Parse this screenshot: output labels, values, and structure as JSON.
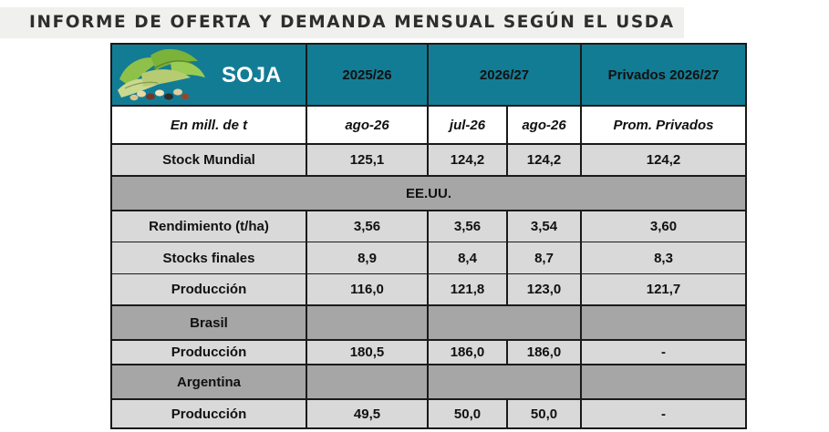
{
  "page_title": "INFORME DE OFERTA Y DEMANDA MENSUAL SEGÚN EL USDA",
  "colors": {
    "header_bg": "#137c95",
    "row_gray": "#d9d9d9",
    "section_gray": "#a6a6a6",
    "highlight_red": "#ff0000",
    "title_band": "#f0f0ee"
  },
  "table": {
    "product": "SOJA",
    "product_icon": "soybean-pods-icon",
    "header": {
      "col1": "2025/26",
      "col2": "2026/27",
      "col3": "Privados 2026/27"
    },
    "subheader": {
      "unit": "En mill. de t",
      "c1": "ago-26",
      "c2": "jul-26",
      "c3": "ago-26",
      "c4": "Prom. Privados"
    },
    "stock_mundial": {
      "label": "Stock Mundial",
      "v1": "125,1",
      "v2": "124,2",
      "v3": "124,2",
      "v4": "124,2"
    },
    "section_us": "EE.UU.",
    "us_rows": [
      {
        "label": "Rendimiento (t/ha)",
        "v1": "3,56",
        "v2": "3,56",
        "v3": "3,54",
        "v4": "3,60"
      },
      {
        "label": "Stocks finales",
        "v1": "8,9",
        "v2": "8,4",
        "v3": "8,7",
        "v4": "8,3"
      },
      {
        "label": "Producción",
        "v1": "116,0",
        "v2": "121,8",
        "v3": "123,0",
        "v4": "121,7"
      }
    ],
    "brasil": {
      "heading": "Brasil",
      "row": {
        "label": "Producción",
        "v1": "180,5",
        "v2": "186,0",
        "v3": "186,0",
        "v4": "-"
      }
    },
    "argentina": {
      "heading": "Argentina",
      "row": {
        "label": "Producción",
        "v1": "49,5",
        "v2": "50,0",
        "v3": "50,0",
        "v4": "-"
      }
    }
  }
}
